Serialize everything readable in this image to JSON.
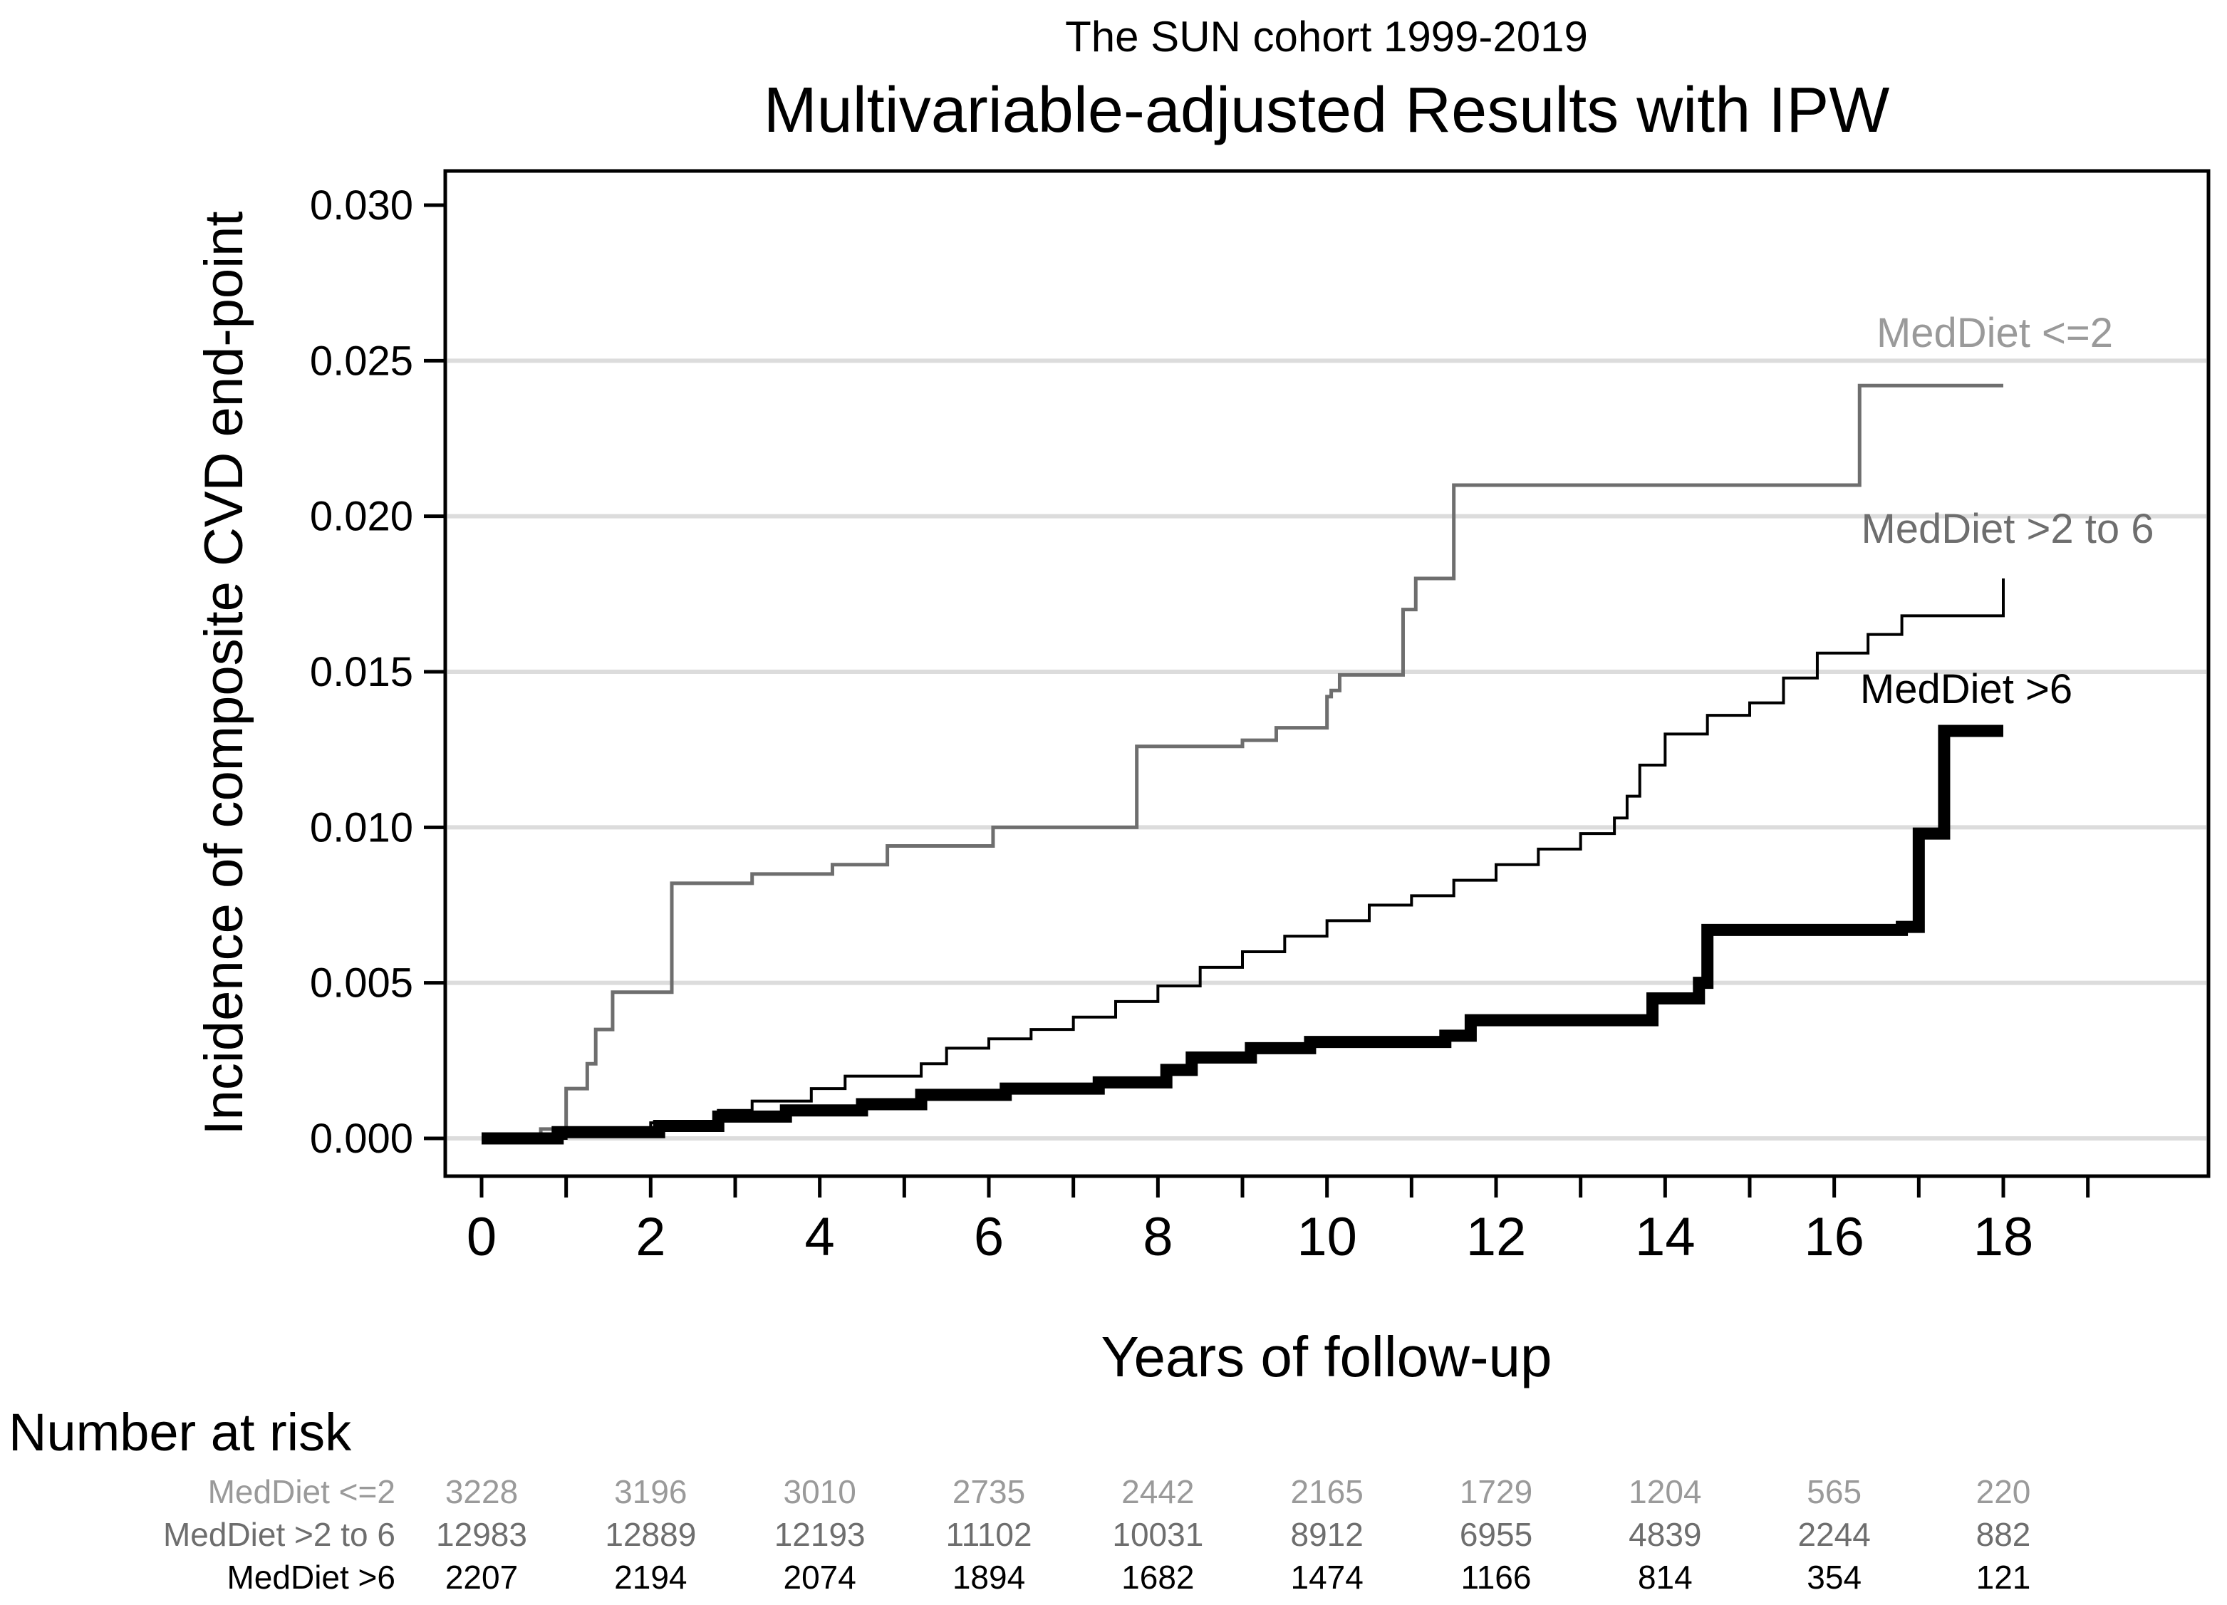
{
  "chart_data": {
    "type": "line",
    "subtitle": "The SUN cohort 1999-2019",
    "title": "Multivariable-adjusted Results with IPW",
    "xlabel": "Years of follow-up",
    "ylabel": "Incidence of composite CVD end-point",
    "xlim": [
      -0.5,
      20
    ],
    "ylim": [
      -0.0012,
      0.0311
    ],
    "x_ticks": [
      0,
      2,
      4,
      6,
      8,
      10,
      12,
      14,
      16,
      18
    ],
    "x_tick_labels": [
      "0",
      "2",
      "4",
      "6",
      "8",
      "10",
      "12",
      "14",
      "16",
      "18"
    ],
    "x_minor_ticks": [
      1,
      3,
      5,
      7,
      9,
      11,
      13,
      15,
      17,
      19
    ],
    "y_ticks": [
      0,
      0.005,
      0.01,
      0.015,
      0.02,
      0.025,
      0.03
    ],
    "y_tick_labels": [
      "0.000",
      "0.005",
      "0.010",
      "0.015",
      "0.020",
      "0.025",
      "0.030"
    ],
    "gridlines_y": [
      0,
      0.005,
      0.01,
      0.015,
      0.02,
      0.025
    ],
    "series": [
      {
        "name": "MedDiet <=2",
        "color": "#6e6e6e",
        "label_color": "#9a9a9a",
        "step_x": [
          0,
          0.7,
          1.0,
          1.25,
          1.35,
          1.55,
          2.25,
          3.2,
          4.15,
          4.8,
          6.05,
          7.75,
          9.0,
          9.4,
          10.0,
          10.05,
          10.15,
          10.9,
          11.05,
          11.5,
          16.3,
          18.0
        ],
        "step_y": [
          0,
          0.0003,
          0.0016,
          0.0024,
          0.0035,
          0.0047,
          0.0082,
          0.0085,
          0.0088,
          0.0094,
          0.01,
          0.0126,
          0.0128,
          0.0132,
          0.0142,
          0.0144,
          0.0149,
          0.017,
          0.018,
          0.021,
          0.0242,
          0.0242
        ]
      },
      {
        "name": "MedDiet >2 to 6",
        "color": "#000000",
        "label_color": "#6e6e6e",
        "step_x": [
          0,
          1.0,
          2.0,
          2.8,
          3.2,
          3.9,
          4.3,
          5.2,
          5.5,
          6.0,
          6.5,
          7.0,
          7.5,
          8.0,
          8.5,
          9.0,
          9.5,
          10.0,
          10.5,
          11.0,
          11.5,
          12.0,
          12.5,
          13.0,
          13.4,
          13.55,
          13.7,
          14.0,
          14.5,
          15.0,
          15.4,
          15.8,
          16.4,
          16.8,
          18.0
        ],
        "step_y": [
          0,
          0.0002,
          0.0005,
          0.0009,
          0.0012,
          0.0016,
          0.002,
          0.0024,
          0.0029,
          0.0032,
          0.0035,
          0.0039,
          0.0044,
          0.0049,
          0.0055,
          0.006,
          0.0065,
          0.007,
          0.0075,
          0.0078,
          0.0083,
          0.0088,
          0.0093,
          0.0098,
          0.0103,
          0.011,
          0.012,
          0.013,
          0.0136,
          0.014,
          0.0148,
          0.0156,
          0.0162,
          0.0168,
          0.018
        ]
      },
      {
        "name": "MedDiet >6",
        "color": "#000000",
        "label_color": "#000000",
        "step_x": [
          0,
          0.9,
          2.1,
          2.8,
          3.6,
          4.5,
          5.2,
          6.2,
          7.3,
          8.1,
          8.4,
          9.1,
          9.8,
          11.4,
          11.7,
          13.85,
          14.4,
          14.5,
          16.8,
          17.0,
          17.3,
          18.0
        ],
        "step_y": [
          0,
          0.0002,
          0.0004,
          0.0007,
          0.0009,
          0.0011,
          0.0014,
          0.0016,
          0.0018,
          0.0022,
          0.0026,
          0.0029,
          0.0031,
          0.0033,
          0.0038,
          0.0045,
          0.005,
          0.0067,
          0.0068,
          0.0098,
          0.0131,
          0.0131
        ]
      }
    ],
    "risk_table": {
      "title": "Number at risk",
      "times": [
        0,
        2,
        4,
        6,
        8,
        10,
        12,
        14,
        16,
        18
      ],
      "rows": [
        {
          "name": "MedDiet <=2",
          "color": "#9a9a9a",
          "values": [
            "3228",
            "3196",
            "3010",
            "2735",
            "2442",
            "2165",
            "1729",
            "1204",
            "565",
            "220"
          ]
        },
        {
          "name": "MedDiet >2 to 6",
          "color": "#6e6e6e",
          "values": [
            "12983",
            "12889",
            "12193",
            "11102",
            "10031",
            "8912",
            "6955",
            "4839",
            "2244",
            "882"
          ]
        },
        {
          "name": "MedDiet >6",
          "color": "#000000",
          "values": [
            "2207",
            "2194",
            "2074",
            "1894",
            "1682",
            "1474",
            "1166",
            "814",
            "354",
            "121"
          ]
        }
      ]
    }
  }
}
